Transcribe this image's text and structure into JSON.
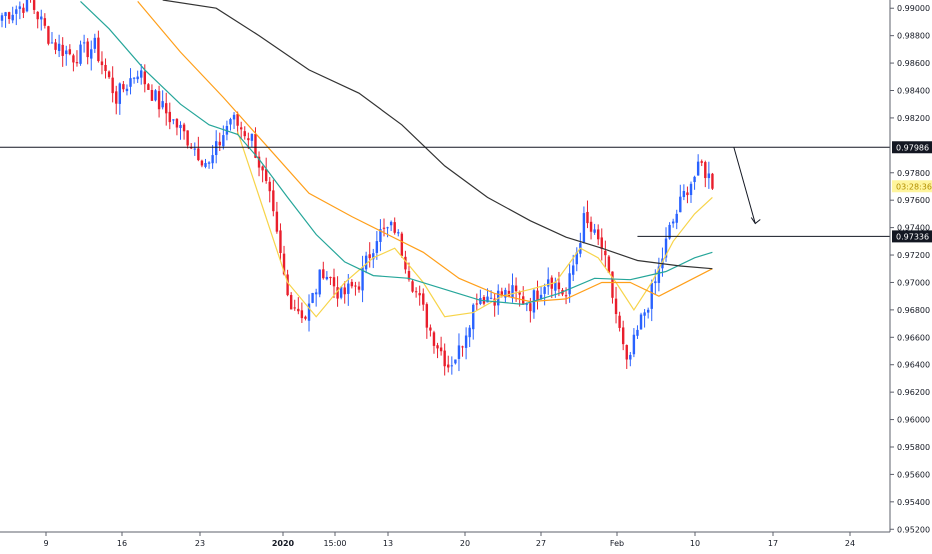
{
  "colors": {
    "background": "#ffffff",
    "axis": "#5d606b",
    "up": "#2962ff",
    "down": "#e91e2c",
    "yellow_ma": "#f7d44a",
    "orange_ma": "#ff9f1a",
    "teal_ma": "#26a69a",
    "black_ma": "#333333",
    "price_label_bg": "#131722",
    "countdown_bg": "#fff59d",
    "countdown_text": "#b38f00"
  },
  "price_axis": {
    "ticks": [
      "0.99000",
      "0.98800",
      "0.98600",
      "0.98400",
      "0.98200",
      "0.97800",
      "0.97600",
      "0.97400",
      "0.97200",
      "0.97000",
      "0.96800",
      "0.96600",
      "0.96400",
      "0.96200",
      "0.96000",
      "0.95800",
      "0.95600",
      "0.95400",
      "0.95200"
    ]
  },
  "time_axis": {
    "ticks": [
      {
        "label": "9",
        "bold": false
      },
      {
        "label": "16",
        "bold": false
      },
      {
        "label": "23",
        "bold": false
      },
      {
        "label": "2020",
        "bold": true
      },
      {
        "label": "15:00",
        "bold": false
      },
      {
        "label": "13",
        "bold": false
      },
      {
        "label": "20",
        "bold": false
      },
      {
        "label": "27",
        "bold": false
      },
      {
        "label": "Feb",
        "bold": false
      },
      {
        "label": "10",
        "bold": false
      },
      {
        "label": "17",
        "bold": false
      },
      {
        "label": "24",
        "bold": false
      }
    ]
  },
  "labels": {
    "resistance_price": "0.97986",
    "support_price": "0.97336",
    "countdown": "03:28:36"
  },
  "chart_data": {
    "type": "candlestick",
    "ylim": [
      0.9518,
      0.9906
    ],
    "horizontal_lines": [
      0.97986,
      0.97336
    ],
    "y_ticks": [
      0.99,
      0.988,
      0.986,
      0.984,
      0.982,
      0.978,
      0.976,
      0.974,
      0.972,
      0.97,
      0.968,
      0.966,
      0.964,
      0.962,
      0.96,
      0.958,
      0.956,
      0.954,
      0.952
    ],
    "candle_count": 200,
    "closes_anchor": [
      [
        0,
        0.9895
      ],
      [
        8,
        0.9905
      ],
      [
        14,
        0.9875
      ],
      [
        20,
        0.9865
      ],
      [
        26,
        0.9872
      ],
      [
        32,
        0.9835
      ],
      [
        38,
        0.9855
      ],
      [
        44,
        0.983
      ],
      [
        52,
        0.9805
      ],
      [
        58,
        0.9785
      ],
      [
        64,
        0.982
      ],
      [
        70,
        0.9805
      ],
      [
        75,
        0.976
      ],
      [
        80,
        0.969
      ],
      [
        85,
        0.9675
      ],
      [
        90,
        0.971
      ],
      [
        95,
        0.969
      ],
      [
        100,
        0.97
      ],
      [
        105,
        0.9735
      ],
      [
        110,
        0.974
      ],
      [
        115,
        0.97
      ],
      [
        120,
        0.9665
      ],
      [
        125,
        0.964
      ],
      [
        128,
        0.965
      ],
      [
        133,
        0.969
      ],
      [
        138,
        0.969
      ],
      [
        143,
        0.9692
      ],
      [
        148,
        0.9685
      ],
      [
        153,
        0.9705
      ],
      [
        158,
        0.969
      ],
      [
        163,
        0.9745
      ],
      [
        168,
        0.9725
      ],
      [
        171,
        0.969
      ],
      [
        175,
        0.9638
      ],
      [
        179,
        0.9672
      ],
      [
        183,
        0.97
      ],
      [
        187,
        0.9738
      ],
      [
        192,
        0.977
      ],
      [
        196,
        0.9785
      ],
      [
        199,
        0.9773
      ]
    ],
    "moving_averages": [
      {
        "color": "yellow",
        "points": [
          [
            66,
            0.981
          ],
          [
            73,
            0.9755
          ],
          [
            80,
            0.97
          ],
          [
            88,
            0.9675
          ],
          [
            96,
            0.97
          ],
          [
            104,
            0.9718
          ],
          [
            110,
            0.9725
          ],
          [
            118,
            0.97
          ],
          [
            124,
            0.9675
          ],
          [
            132,
            0.9678
          ],
          [
            140,
            0.969
          ],
          [
            148,
            0.9695
          ],
          [
            155,
            0.97
          ],
          [
            162,
            0.9725
          ],
          [
            167,
            0.9718
          ],
          [
            172,
            0.97
          ],
          [
            177,
            0.968
          ],
          [
            182,
            0.97
          ],
          [
            188,
            0.973
          ],
          [
            194,
            0.975
          ],
          [
            199,
            0.9762
          ]
        ]
      },
      {
        "color": "orange",
        "points": [
          [
            38,
            0.9905
          ],
          [
            50,
            0.9868
          ],
          [
            62,
            0.9835
          ],
          [
            74,
            0.98
          ],
          [
            86,
            0.9765
          ],
          [
            98,
            0.9748
          ],
          [
            108,
            0.9735
          ],
          [
            118,
            0.9722
          ],
          [
            128,
            0.9703
          ],
          [
            138,
            0.9692
          ],
          [
            148,
            0.9686
          ],
          [
            158,
            0.9688
          ],
          [
            168,
            0.97
          ],
          [
            176,
            0.97
          ],
          [
            184,
            0.969
          ],
          [
            190,
            0.9698
          ],
          [
            199,
            0.971
          ]
        ]
      },
      {
        "color": "teal",
        "points": [
          [
            22,
            0.9905
          ],
          [
            30,
            0.9885
          ],
          [
            40,
            0.9855
          ],
          [
            50,
            0.983
          ],
          [
            58,
            0.9815
          ],
          [
            66,
            0.9808
          ],
          [
            72,
            0.979
          ],
          [
            80,
            0.9762
          ],
          [
            88,
            0.9735
          ],
          [
            96,
            0.9715
          ],
          [
            104,
            0.9705
          ],
          [
            114,
            0.9703
          ],
          [
            124,
            0.9695
          ],
          [
            134,
            0.9687
          ],
          [
            146,
            0.9684
          ],
          [
            156,
            0.9692
          ],
          [
            166,
            0.9703
          ],
          [
            176,
            0.9702
          ],
          [
            186,
            0.9708
          ],
          [
            194,
            0.9718
          ],
          [
            199,
            0.9722
          ]
        ]
      },
      {
        "color": "black",
        "points": [
          [
            45,
            0.9906
          ],
          [
            60,
            0.99
          ],
          [
            72,
            0.988
          ],
          [
            86,
            0.9855
          ],
          [
            100,
            0.9838
          ],
          [
            112,
            0.9815
          ],
          [
            124,
            0.9785
          ],
          [
            136,
            0.9762
          ],
          [
            148,
            0.9745
          ],
          [
            158,
            0.9733
          ],
          [
            168,
            0.9725
          ],
          [
            178,
            0.9716
          ],
          [
            190,
            0.9712
          ],
          [
            199,
            0.971
          ]
        ]
      }
    ]
  }
}
